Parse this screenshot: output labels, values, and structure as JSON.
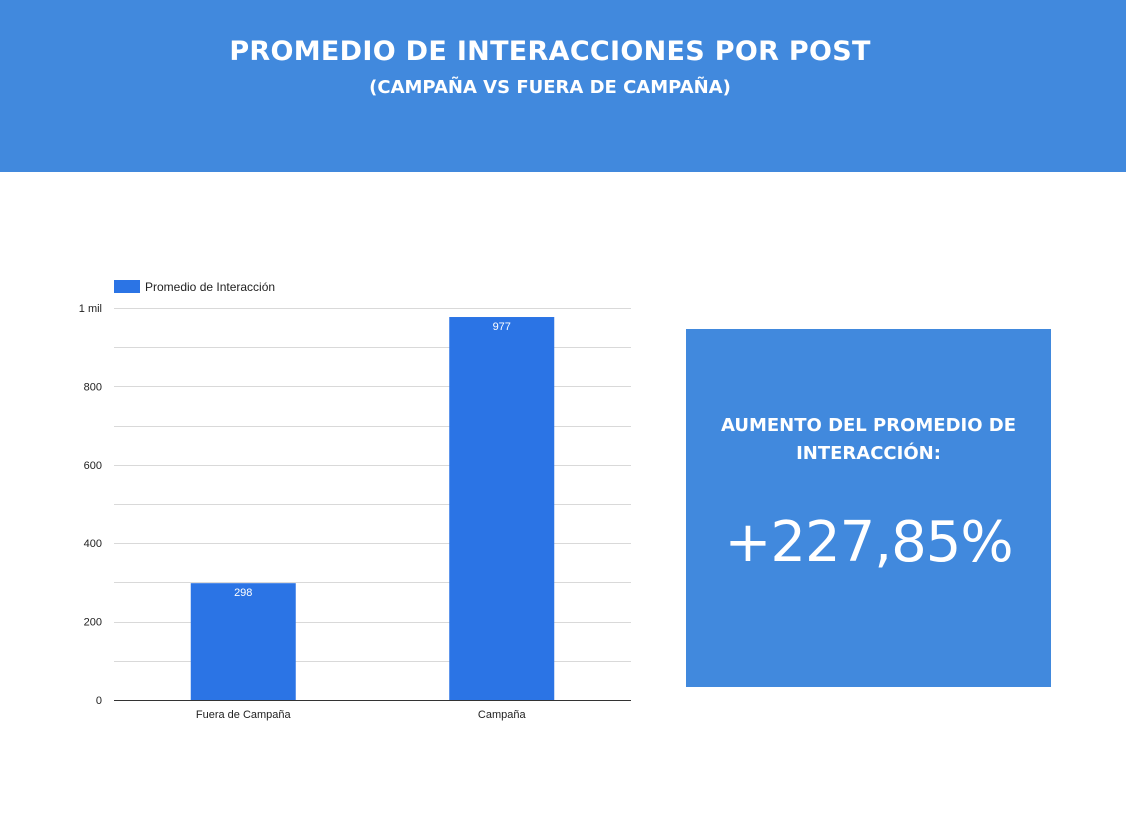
{
  "header": {
    "title": "PROMEDIO DE INTERACCIONES POR POST",
    "subtitle": "(CAMPAÑA VS FUERA DE CAMPAÑA)"
  },
  "kpi": {
    "label": "AUMENTO DEL PROMEDIO DE INTERACCIÓN:",
    "value": "+227,85%"
  },
  "colors": {
    "header_bg": "#4189dd",
    "bar": "#2b74e5",
    "kpi_bg": "#4189dd"
  },
  "chart_data": {
    "type": "bar",
    "categories": [
      "Fuera de Campaña",
      "Campaña"
    ],
    "series": [
      {
        "name": "Promedio de Interacción",
        "values": [
          298,
          977
        ]
      }
    ],
    "data_labels": [
      "298",
      "977"
    ],
    "ylim": [
      0,
      1000
    ],
    "yticks": [
      0,
      200,
      400,
      600,
      800,
      1000
    ],
    "ytick_labels": [
      "0",
      "200",
      "400",
      "600",
      "800",
      "1 mil"
    ],
    "minor_gridlines": [
      100,
      300,
      500,
      700,
      900
    ],
    "legend_position": "top-left",
    "grid": true
  }
}
